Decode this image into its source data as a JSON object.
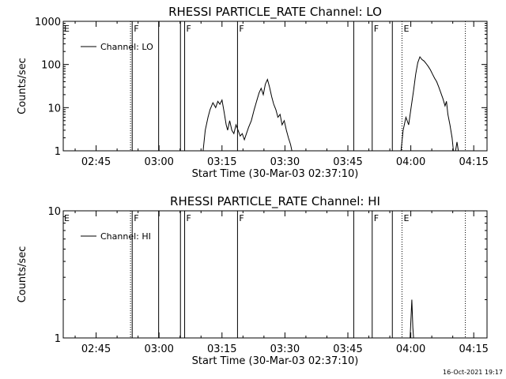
{
  "chart_data": [
    {
      "type": "line",
      "title": "RHESSI PARTICLE_RATE Channel: LO",
      "xlabel": "Start Time (30-Mar-03 02:37:10)",
      "ylabel": "Counts/sec",
      "xlim": [
        "02:37:10",
        "04:18:10"
      ],
      "ylim": [
        1,
        1000
      ],
      "yscale": "log",
      "xticks": [
        "02:45",
        "03:00",
        "03:15",
        "03:30",
        "03:45",
        "04:00",
        "04:15"
      ],
      "yticks": [
        "1",
        "10",
        "100",
        "1000"
      ],
      "legend": {
        "position": "top-left",
        "entries": [
          "Channel: LO"
        ]
      },
      "grid": false,
      "markers": [
        {
          "time": "02:53:12",
          "label": "",
          "style": "dotted"
        },
        {
          "time": "02:53:36",
          "label": "F",
          "style": "solid"
        },
        {
          "time": "02:59:54",
          "label": "",
          "style": "solid"
        },
        {
          "time": "03:05:06",
          "label": "",
          "style": "solid"
        },
        {
          "time": "03:06:06",
          "label": "F",
          "style": "solid"
        },
        {
          "time": "03:18:42",
          "label": "F",
          "style": "solid"
        },
        {
          "time": "03:46:24",
          "label": "",
          "style": "solid"
        },
        {
          "time": "03:50:48",
          "label": "F",
          "style": "solid"
        },
        {
          "time": "03:55:36",
          "label": "",
          "style": "solid"
        },
        {
          "time": "03:57:54",
          "label": "E",
          "style": "dotted"
        },
        {
          "time": "04:13:00",
          "label": "",
          "style": "dotted"
        }
      ],
      "edge_labels": [
        "E"
      ],
      "series": [
        {
          "name": "Channel: LO",
          "segments": [
            [
              [
                "03:10:30",
                1
              ],
              [
                "03:11:00",
                3
              ],
              [
                "03:11:40",
                6
              ],
              [
                "03:12:10",
                9
              ],
              [
                "03:12:50",
                13
              ],
              [
                "03:13:30",
                10
              ],
              [
                "03:14:00",
                14
              ],
              [
                "03:14:30",
                12
              ],
              [
                "03:15:00",
                15
              ],
              [
                "03:15:30",
                8
              ],
              [
                "03:16:00",
                4
              ],
              [
                "03:16:20",
                3
              ],
              [
                "03:16:50",
                5
              ],
              [
                "03:17:20",
                3
              ],
              [
                "03:17:50",
                2.5
              ],
              [
                "03:18:20",
                4
              ],
              [
                "03:18:50",
                3
              ],
              [
                "03:19:20",
                2.2
              ],
              [
                "03:19:50",
                2.5
              ],
              [
                "03:20:20",
                1.8
              ],
              [
                "03:20:50",
                2.5
              ],
              [
                "03:21:20",
                3.5
              ],
              [
                "03:22:00",
                5
              ],
              [
                "03:22:40",
                9
              ],
              [
                "03:23:20",
                15
              ],
              [
                "03:23:50",
                22
              ],
              [
                "03:24:20",
                28
              ],
              [
                "03:24:50",
                20
              ],
              [
                "03:25:20",
                35
              ],
              [
                "03:25:50",
                45
              ],
              [
                "03:26:20",
                30
              ],
              [
                "03:26:50",
                18
              ],
              [
                "03:27:20",
                12
              ],
              [
                "03:27:50",
                9
              ],
              [
                "03:28:20",
                6
              ],
              [
                "03:28:50",
                7
              ],
              [
                "03:29:20",
                4
              ],
              [
                "03:29:50",
                5
              ],
              [
                "03:30:20",
                3
              ],
              [
                "03:30:50",
                2
              ],
              [
                "03:31:20",
                1.4
              ],
              [
                "03:31:40",
                1
              ]
            ],
            [
              [
                "03:57:40",
                1
              ],
              [
                "03:58:10",
                3
              ],
              [
                "03:58:50",
                6
              ],
              [
                "03:59:30",
                4
              ],
              [
                "04:00:00",
                9
              ],
              [
                "04:00:40",
                25
              ],
              [
                "04:01:10",
                60
              ],
              [
                "04:01:40",
                110
              ],
              [
                "04:02:10",
                150
              ],
              [
                "04:02:40",
                130
              ],
              [
                "04:03:10",
                120
              ],
              [
                "04:03:40",
                105
              ],
              [
                "04:04:10",
                90
              ],
              [
                "04:04:40",
                75
              ],
              [
                "04:05:10",
                60
              ],
              [
                "04:05:40",
                48
              ],
              [
                "04:06:10",
                40
              ],
              [
                "04:06:40",
                30
              ],
              [
                "04:07:10",
                22
              ],
              [
                "04:07:40",
                16
              ],
              [
                "04:08:10",
                11
              ],
              [
                "04:08:30",
                14
              ],
              [
                "04:08:50",
                7
              ],
              [
                "04:09:20",
                4
              ],
              [
                "04:09:50",
                2
              ],
              [
                "04:10:10",
                1
              ]
            ],
            [
              [
                "04:10:40",
                1
              ],
              [
                "04:11:00",
                1.6
              ],
              [
                "04:11:20",
                1
              ]
            ]
          ]
        }
      ]
    },
    {
      "type": "line",
      "title": "RHESSI PARTICLE_RATE Channel: HI",
      "xlabel": "Start Time (30-Mar-03 02:37:10)",
      "ylabel": "Counts/sec",
      "xlim": [
        "02:37:10",
        "04:18:10"
      ],
      "ylim": [
        1,
        10
      ],
      "yscale": "log",
      "xticks": [
        "02:45",
        "03:00",
        "03:15",
        "03:30",
        "03:45",
        "04:00",
        "04:15"
      ],
      "yticks": [
        "1",
        "10"
      ],
      "legend": {
        "position": "top-left",
        "entries": [
          "Channel: HI"
        ]
      },
      "grid": false,
      "markers": [
        {
          "time": "02:53:12",
          "label": "",
          "style": "dotted"
        },
        {
          "time": "02:53:36",
          "label": "F",
          "style": "solid"
        },
        {
          "time": "02:59:54",
          "label": "",
          "style": "solid"
        },
        {
          "time": "03:05:06",
          "label": "",
          "style": "solid"
        },
        {
          "time": "03:06:06",
          "label": "F",
          "style": "solid"
        },
        {
          "time": "03:18:42",
          "label": "F",
          "style": "solid"
        },
        {
          "time": "03:46:24",
          "label": "",
          "style": "solid"
        },
        {
          "time": "03:50:48",
          "label": "F",
          "style": "solid"
        },
        {
          "time": "03:55:36",
          "label": "",
          "style": "solid"
        },
        {
          "time": "03:57:54",
          "label": "E",
          "style": "dotted"
        },
        {
          "time": "04:13:00",
          "label": "",
          "style": "dotted"
        }
      ],
      "edge_labels": [
        "E"
      ],
      "series": [
        {
          "name": "Channel: HI",
          "segments": [
            [
              [
                "03:59:50",
                1
              ],
              [
                "04:00:05",
                1.5
              ],
              [
                "04:00:15",
                2
              ],
              [
                "04:00:30",
                1.2
              ],
              [
                "04:00:40",
                1
              ]
            ]
          ]
        }
      ]
    }
  ],
  "footer": {
    "timestamp": "16-Oct-2021 19:17"
  }
}
